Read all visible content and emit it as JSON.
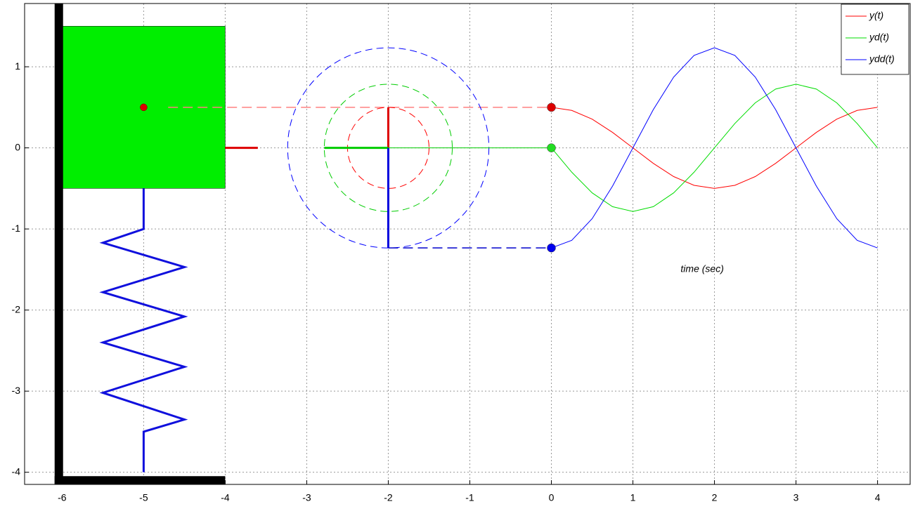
{
  "chart_data": {
    "type": "line",
    "x": [
      0,
      0.25,
      0.5,
      0.75,
      1,
      1.25,
      1.5,
      1.75,
      2,
      2.25,
      2.5,
      2.75,
      3,
      3.25,
      3.5,
      3.75,
      4
    ],
    "series": [
      {
        "name": "y(t)",
        "color": "#ff0000",
        "values": [
          0.5,
          0.462,
          0.354,
          0.191,
          0,
          -0.191,
          -0.354,
          -0.462,
          -0.5,
          -0.462,
          -0.354,
          -0.191,
          0,
          0.191,
          0.354,
          0.462,
          0.5
        ]
      },
      {
        "name": "yd(t)",
        "color": "#00dd00",
        "values": [
          0,
          -0.3,
          -0.555,
          -0.725,
          -0.785,
          -0.725,
          -0.555,
          -0.3,
          0,
          0.3,
          0.555,
          0.725,
          0.785,
          0.725,
          0.555,
          0.3,
          0
        ]
      },
      {
        "name": "ydd(t)",
        "color": "#0000ff",
        "values": [
          -1.234,
          -1.14,
          -0.873,
          -0.472,
          0,
          0.472,
          0.873,
          1.14,
          1.234,
          1.14,
          0.873,
          0.472,
          0,
          -0.472,
          -0.873,
          -1.14,
          -1.234
        ]
      }
    ],
    "annotation": "time (sec)",
    "xlim": [
      -6.46,
      4.4
    ],
    "ylim": [
      -4.15,
      1.78
    ],
    "xticks": [
      -6,
      -5,
      -4,
      -3,
      -2,
      -1,
      0,
      1,
      2,
      3,
      4
    ],
    "yticks": [
      -4,
      -3,
      -2,
      -1,
      0,
      1
    ],
    "grid": true,
    "legend": "upper right"
  }
}
